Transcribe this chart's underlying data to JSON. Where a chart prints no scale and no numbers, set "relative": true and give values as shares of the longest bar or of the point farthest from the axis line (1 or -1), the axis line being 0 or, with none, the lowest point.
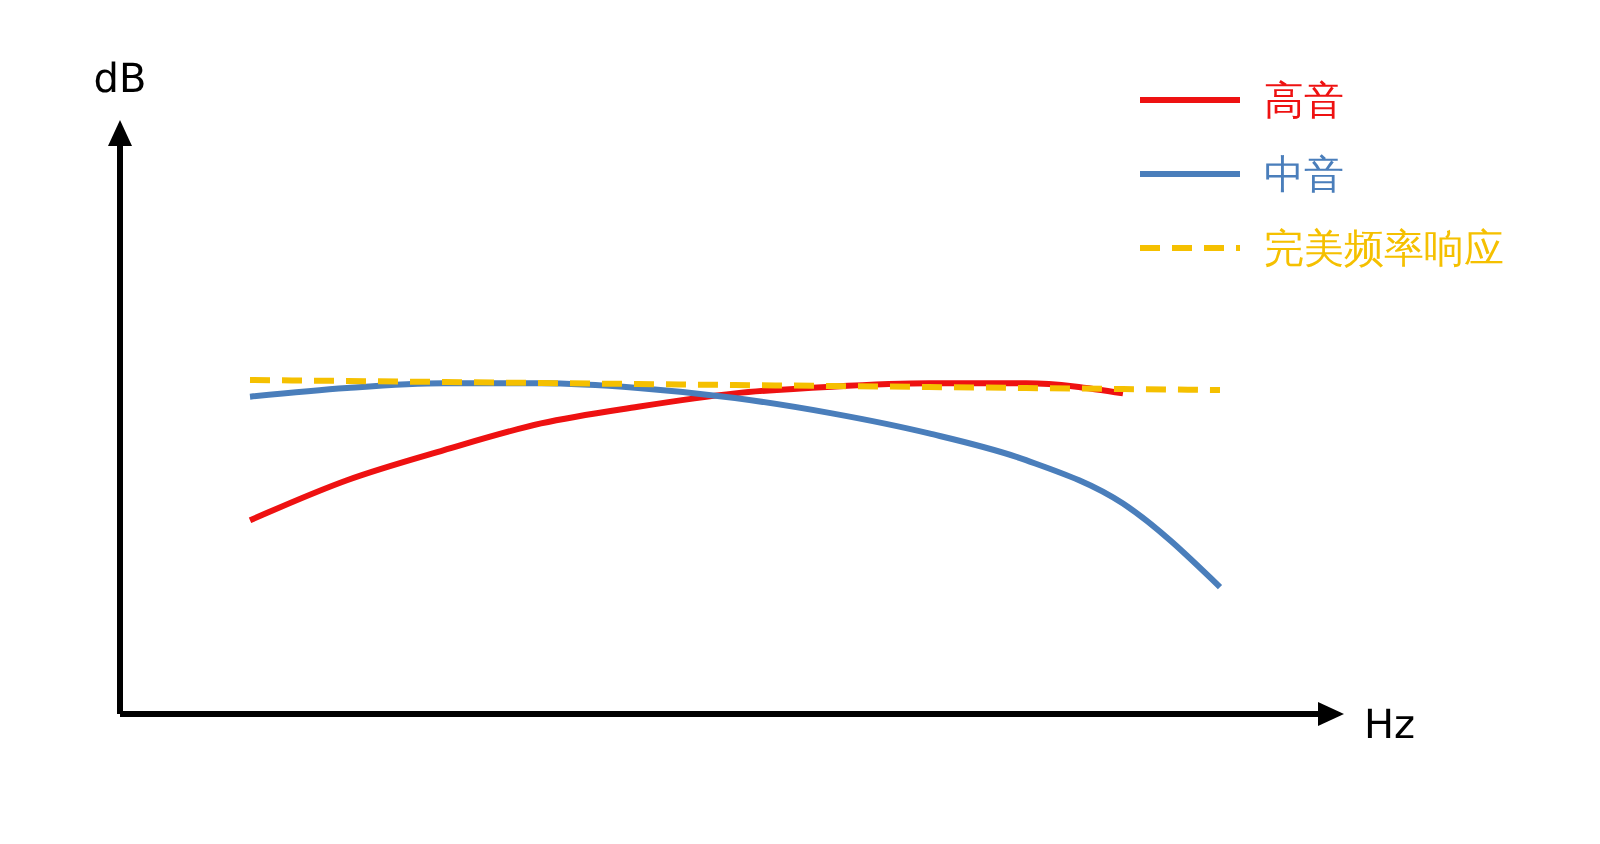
{
  "chart_data": {
    "type": "line",
    "xlabel": "Hz",
    "annotations": [
      "dB"
    ],
    "relative": true,
    "categories": [
      null,
      null,
      null,
      null,
      null,
      null,
      null,
      null,
      null,
      null,
      null
    ],
    "legend": "top right",
    "series": [
      {
        "name": "高音",
        "color": "#ee1111",
        "line_style": "solid",
        "values": [
          0.58,
          0.7,
          0.79,
          0.87,
          0.92,
          0.96,
          0.98,
          0.99,
          0.99,
          0.96,
          null
        ]
      },
      {
        "name": "中音",
        "color": "#4a7ebb",
        "line_style": "solid",
        "values": [
          0.95,
          0.976,
          0.99,
          0.99,
          0.976,
          0.946,
          0.9,
          0.84,
          0.76,
          0.63,
          0.38
        ]
      },
      {
        "name": "完美频率响应",
        "color": "#f5c000",
        "line_style": "dashed",
        "values": [
          1,
          0.997,
          0.994,
          0.991,
          0.988,
          0.985,
          0.982,
          0.979,
          0.976,
          0.973,
          0.97
        ]
      }
    ]
  }
}
